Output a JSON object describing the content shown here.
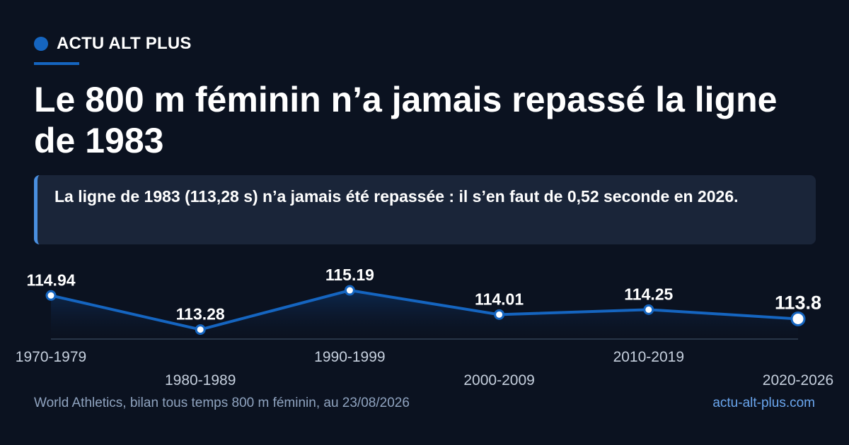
{
  "brand": {
    "name": "ACTU ALT PLUS",
    "accent": "#1565c0"
  },
  "title": "Le 800 m féminin n’a jamais repassé la ligne de 1983",
  "callout": "La ligne de 1983 (113,28 s) n’a jamais été repassée : il s’en faut de 0,52 seconde en 2026.",
  "chart_data": {
    "type": "line",
    "categories": [
      "1970-1979",
      "1980-1989",
      "1990-1999",
      "2000-2009",
      "2010-2019",
      "2020-2026"
    ],
    "values": [
      114.94,
      113.28,
      115.19,
      114.01,
      114.25,
      113.8
    ],
    "value_labels": [
      "114.94",
      "113.28",
      "115.19",
      "114.01",
      "114.25",
      "113.8"
    ],
    "ylim": [
      112.82,
      115.5
    ],
    "highlight_last": true,
    "line_color": "#1565c0",
    "area_fill": "#0d2a52",
    "grid": false
  },
  "footer": {
    "source": "World Athletics, bilan tous temps 800 m féminin, au 23/08/2026",
    "site": "actu-alt-plus.com"
  }
}
